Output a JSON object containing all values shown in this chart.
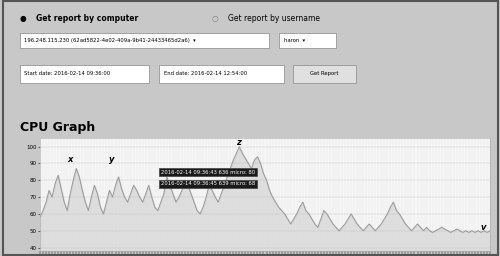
{
  "title": "CPU Graph",
  "header_text1": "Get report by computer",
  "header_text2": "Get report by username",
  "ip_label": "196.248.115.230 (62ad5822-4e02-409a-9b41-24433465d2a6)",
  "user_label": "haron",
  "start_date": "Start date: 2016-02-14 09:36:00",
  "end_date": "End date: 2016-02-14 12:54:00",
  "get_report_btn": "Get Report",
  "ylabel_ticks": [
    40,
    50,
    60,
    70,
    80,
    90,
    100
  ],
  "ylim": [
    38,
    105
  ],
  "page_bg": "#c8c8c8",
  "content_bg": "#f0f0f0",
  "graph_bg": "#f5f5f5",
  "line_color": "#999999",
  "fill_color": "#c8c8c8",
  "tooltip1": "2016-02-14 09:36:43 636 micro: 80",
  "tooltip2": "2016-02-14 09:36:45 639 micro: 68",
  "label_x": "x",
  "label_y": "y",
  "label_z": "z",
  "label_v": "v",
  "cpu_values": [
    58,
    62,
    67,
    74,
    70,
    78,
    83,
    75,
    67,
    62,
    72,
    80,
    87,
    82,
    74,
    67,
    62,
    70,
    77,
    72,
    64,
    60,
    67,
    74,
    70,
    77,
    82,
    75,
    70,
    67,
    72,
    77,
    74,
    70,
    67,
    72,
    77,
    70,
    64,
    62,
    67,
    72,
    82,
    77,
    72,
    67,
    70,
    74,
    80,
    77,
    72,
    67,
    62,
    60,
    64,
    70,
    77,
    74,
    70,
    67,
    72,
    77,
    82,
    87,
    92,
    96,
    100,
    96,
    93,
    90,
    87,
    92,
    94,
    90,
    84,
    80,
    74,
    70,
    67,
    64,
    62,
    60,
    57,
    54,
    57,
    60,
    64,
    67,
    62,
    60,
    57,
    54,
    52,
    57,
    62,
    60,
    57,
    54,
    52,
    50,
    52,
    54,
    57,
    60,
    57,
    54,
    52,
    50,
    52,
    54,
    52,
    50,
    52,
    54,
    57,
    60,
    64,
    67,
    62,
    60,
    57,
    54,
    52,
    50,
    52,
    54,
    52,
    50,
    52,
    50,
    49,
    50,
    51,
    52,
    51,
    50,
    49,
    50,
    51,
    50,
    49,
    50,
    49,
    50,
    49,
    50,
    49,
    50,
    49,
    50
  ]
}
